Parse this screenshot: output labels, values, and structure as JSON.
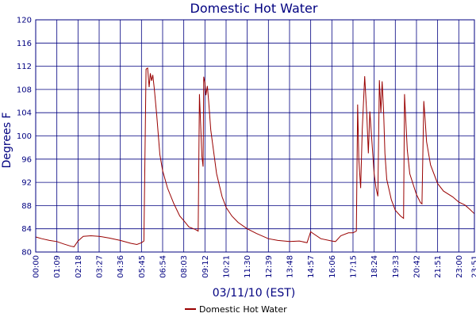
{
  "chart_data": {
    "type": "line",
    "title": "Domestic Hot Water",
    "xlabel": "03/11/10 (EST)",
    "ylabel": "Degrees F",
    "ylim": [
      80,
      120
    ],
    "yticks": [
      80,
      84,
      88,
      92,
      96,
      100,
      104,
      108,
      112,
      116,
      120
    ],
    "xlim": [
      "00:00",
      "23:51"
    ],
    "xticks": [
      "00:00",
      "01:09",
      "02:18",
      "03:27",
      "04:36",
      "05:45",
      "06:54",
      "08:03",
      "09:12",
      "10:21",
      "11:30",
      "12:39",
      "13:48",
      "14:57",
      "16:06",
      "17:15",
      "18:24",
      "19:33",
      "20:42",
      "21:51",
      "23:00",
      "23:51"
    ],
    "grid": true,
    "legend": "bottom-center",
    "colors": {
      "series": "#990000",
      "grid": "#000080",
      "text": "#000080"
    },
    "series": [
      {
        "name": "Domestic Hot Water",
        "points": [
          [
            "00:00",
            82.6
          ],
          [
            "00:20",
            82.3
          ],
          [
            "00:45",
            82.0
          ],
          [
            "01:09",
            81.8
          ],
          [
            "01:30",
            81.4
          ],
          [
            "01:55",
            81.0
          ],
          [
            "02:05",
            80.9
          ],
          [
            "02:18",
            81.9
          ],
          [
            "02:35",
            82.7
          ],
          [
            "03:00",
            82.8
          ],
          [
            "03:27",
            82.7
          ],
          [
            "04:00",
            82.4
          ],
          [
            "04:36",
            82.0
          ],
          [
            "05:10",
            81.5
          ],
          [
            "05:30",
            81.3
          ],
          [
            "05:45",
            81.6
          ],
          [
            "05:53",
            81.9
          ],
          [
            "06:00",
            111.5
          ],
          [
            "06:05",
            111.7
          ],
          [
            "06:10",
            108.4
          ],
          [
            "06:14",
            110.8
          ],
          [
            "06:18",
            109.5
          ],
          [
            "06:22",
            110.5
          ],
          [
            "06:27",
            108.0
          ],
          [
            "06:35",
            103.5
          ],
          [
            "06:45",
            96.8
          ],
          [
            "06:54",
            94.0
          ],
          [
            "07:10",
            91.0
          ],
          [
            "07:30",
            88.4
          ],
          [
            "07:50",
            86.2
          ],
          [
            "08:03",
            85.4
          ],
          [
            "08:20",
            84.3
          ],
          [
            "08:40",
            83.9
          ],
          [
            "08:50",
            83.6
          ],
          [
            "08:54",
            107.2
          ],
          [
            "09:02",
            96.5
          ],
          [
            "09:06",
            94.7
          ],
          [
            "09:08",
            110.2
          ],
          [
            "09:12",
            109.2
          ],
          [
            "09:15",
            107.0
          ],
          [
            "09:20",
            108.6
          ],
          [
            "09:24",
            106.0
          ],
          [
            "09:31",
            101.0
          ],
          [
            "09:50",
            93.5
          ],
          [
            "10:08",
            89.5
          ],
          [
            "10:21",
            87.7
          ],
          [
            "10:40",
            86.2
          ],
          [
            "11:00",
            85.1
          ],
          [
            "11:30",
            84.0
          ],
          [
            "12:00",
            83.2
          ],
          [
            "12:39",
            82.3
          ],
          [
            "13:10",
            82.0
          ],
          [
            "13:48",
            81.8
          ],
          [
            "14:20",
            81.9
          ],
          [
            "14:45",
            81.6
          ],
          [
            "14:57",
            83.5
          ],
          [
            "15:05",
            83.2
          ],
          [
            "15:30",
            82.3
          ],
          [
            "16:06",
            81.9
          ],
          [
            "16:18",
            81.8
          ],
          [
            "16:35",
            82.8
          ],
          [
            "17:00",
            83.3
          ],
          [
            "17:15",
            83.3
          ],
          [
            "17:26",
            83.6
          ],
          [
            "17:30",
            105.4
          ],
          [
            "17:34",
            96.0
          ],
          [
            "17:40",
            91.0
          ],
          [
            "17:45",
            101.0
          ],
          [
            "17:53",
            110.3
          ],
          [
            "18:00",
            103.5
          ],
          [
            "18:05",
            97.0
          ],
          [
            "18:10",
            104.2
          ],
          [
            "18:24",
            93.5
          ],
          [
            "18:30",
            91.0
          ],
          [
            "18:36",
            89.6
          ],
          [
            "18:41",
            109.6
          ],
          [
            "18:46",
            104.0
          ],
          [
            "18:50",
            109.4
          ],
          [
            "18:55",
            104.0
          ],
          [
            "18:59",
            97.0
          ],
          [
            "19:05",
            92.5
          ],
          [
            "19:20",
            89.0
          ],
          [
            "19:33",
            87.2
          ],
          [
            "19:50",
            86.2
          ],
          [
            "20:00",
            85.8
          ],
          [
            "20:03",
            107.2
          ],
          [
            "20:07",
            103.0
          ],
          [
            "20:12",
            97.6
          ],
          [
            "20:20",
            93.5
          ],
          [
            "20:35",
            91.0
          ],
          [
            "20:42",
            89.9
          ],
          [
            "20:55",
            88.5
          ],
          [
            "21:00",
            88.3
          ],
          [
            "21:06",
            106.0
          ],
          [
            "21:10",
            103.0
          ],
          [
            "21:15",
            99.0
          ],
          [
            "21:28",
            95.0
          ],
          [
            "21:51",
            91.8
          ],
          [
            "22:10",
            90.5
          ],
          [
            "22:40",
            89.5
          ],
          [
            "23:00",
            88.6
          ],
          [
            "23:20",
            88.1
          ],
          [
            "23:35",
            87.4
          ],
          [
            "23:51",
            86.6
          ]
        ]
      }
    ]
  }
}
